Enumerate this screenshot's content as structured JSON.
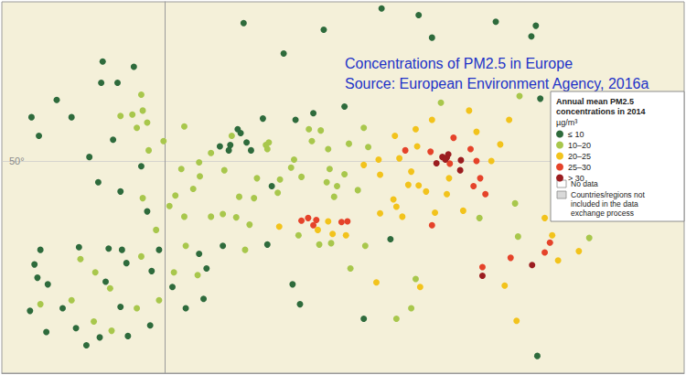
{
  "chart_data": {
    "type": "scatter",
    "title": "Concentrations of PM2.5 in Europe",
    "subtitle": "Source: European Environment Agency, 2016a",
    "legend_title": "Annual mean PM2.5 concentrations in 2014",
    "unit": "µg/m³",
    "legend": "right",
    "grid": true,
    "tick_labels": "y",
    "marker": "circle",
    "xlim": [
      -11,
      35
    ],
    "xticks": [],
    "ylim": [
      34,
      62
    ],
    "yticks": [
      {
        "value": 50,
        "label": "50°"
      }
    ],
    "areas": [
      {
        "label": "No data",
        "color": "#ffffff"
      },
      {
        "label": "Countries/regions not included in the data exchange process",
        "color": "#d9d9d9"
      }
    ],
    "series": [
      {
        "name": "≤ 10",
        "color": "#2e6b3c",
        "values": [
          [
            -8.6,
            41.2
          ],
          [
            -9.1,
            38.7
          ],
          [
            -8.0,
            37.1
          ],
          [
            -7.9,
            40.7
          ],
          [
            -8.4,
            43.3
          ],
          [
            -8.8,
            42.2
          ],
          [
            -5.8,
            43.5
          ],
          [
            -3.8,
            43.4
          ],
          [
            -2.9,
            43.3
          ],
          [
            -6.0,
            37.4
          ],
          [
            -4.4,
            36.7
          ],
          [
            -5.3,
            36.1
          ],
          [
            -2.5,
            36.8
          ],
          [
            -1.0,
            37.6
          ],
          [
            0.5,
            40.5
          ],
          [
            2.8,
            41.9
          ],
          [
            -6.9,
            38.9
          ],
          [
            -4.0,
            40.9
          ],
          [
            -2.6,
            42.3
          ],
          [
            -0.9,
            41.7
          ],
          [
            1.4,
            38.9
          ],
          [
            2.6,
            39.6
          ],
          [
            -3.0,
            39.0
          ],
          [
            -4.5,
            48.4
          ],
          [
            -1.6,
            49.6
          ],
          [
            -3.0,
            47.7
          ],
          [
            -1.2,
            46.2
          ],
          [
            2.3,
            43.0
          ],
          [
            6.9,
            43.7
          ],
          [
            3.9,
            43.6
          ],
          [
            -0.4,
            43.3
          ],
          [
            7.2,
            48.1
          ],
          [
            -6.3,
            53.3
          ],
          [
            -8.5,
            51.9
          ],
          [
            -9.0,
            53.3
          ],
          [
            -7.3,
            54.6
          ],
          [
            -4.3,
            55.9
          ],
          [
            -3.2,
            55.9
          ],
          [
            -2.1,
            57.1
          ],
          [
            -4.2,
            57.5
          ],
          [
            -5.1,
            50.3
          ],
          [
            -3.5,
            51.6
          ],
          [
            3.7,
            51.1
          ],
          [
            4.4,
            51.2
          ],
          [
            5.5,
            51.4
          ],
          [
            4.9,
            52.4
          ],
          [
            5.1,
            52.1
          ],
          [
            6.6,
            53.2
          ],
          [
            5.8,
            50.8
          ],
          [
            4.3,
            50.8
          ],
          [
            8.8,
            53.1
          ],
          [
            10.0,
            53.6
          ],
          [
            12.1,
            54.1
          ],
          [
            5.3,
            60.4
          ],
          [
            10.7,
            59.9
          ],
          [
            18.0,
            59.3
          ],
          [
            17.1,
            61.0
          ],
          [
            22.3,
            60.5
          ],
          [
            25.0,
            60.2
          ],
          [
            24.7,
            59.4
          ],
          [
            8.0,
            58.1
          ],
          [
            14.6,
            61.5
          ],
          [
            25.3,
            54.7
          ],
          [
            9.1,
            39.2
          ],
          [
            8.6,
            40.7
          ],
          [
            13.4,
            38.1
          ],
          [
            25.1,
            35.3
          ],
          [
            15.2,
            44.1
          ]
        ]
      },
      {
        "name": "10–20",
        "color": "#a8c74c",
        "values": [
          [
            -3.7,
            40.4
          ],
          [
            -4.7,
            41.6
          ],
          [
            -0.4,
            39.5
          ],
          [
            2.2,
            41.4
          ],
          [
            -1.6,
            42.8
          ],
          [
            -5.7,
            42.6
          ],
          [
            -3.6,
            37.2
          ],
          [
            -6.3,
            39.5
          ],
          [
            -1.9,
            38.9
          ],
          [
            0.6,
            41.6
          ],
          [
            -4.8,
            37.9
          ],
          [
            -8.4,
            39.2
          ],
          [
            2.35,
            48.85
          ],
          [
            4.8,
            45.75
          ],
          [
            5.4,
            43.3
          ],
          [
            1.4,
            43.6
          ],
          [
            -0.6,
            44.8
          ],
          [
            -1.5,
            47.2
          ],
          [
            3.1,
            50.6
          ],
          [
            6.2,
            48.7
          ],
          [
            7.75,
            48.6
          ],
          [
            5.0,
            47.3
          ],
          [
            3.1,
            45.8
          ],
          [
            1.9,
            47.9
          ],
          [
            0.7,
            47.4
          ],
          [
            1.1,
            49.4
          ],
          [
            2.3,
            49.9
          ],
          [
            4.0,
            49.3
          ],
          [
            6.0,
            47.2
          ],
          [
            0.3,
            46.6
          ],
          [
            5.7,
            45.2
          ],
          [
            1.3,
            45.8
          ],
          [
            3.9,
            46.0
          ],
          [
            -0.1,
            51.5
          ],
          [
            -1.9,
            52.5
          ],
          [
            -2.2,
            53.5
          ],
          [
            -1.5,
            53.8
          ],
          [
            -1.6,
            55.0
          ],
          [
            1.3,
            52.6
          ],
          [
            -1.1,
            50.8
          ],
          [
            -3.0,
            53.4
          ],
          [
            -1.2,
            52.9
          ],
          [
            4.5,
            51.9
          ],
          [
            6.8,
            51.2
          ],
          [
            7.0,
            51.4
          ],
          [
            6.9,
            50.9
          ],
          [
            8.7,
            50.1
          ],
          [
            9.2,
            48.8
          ],
          [
            11.6,
            48.1
          ],
          [
            13.4,
            52.5
          ],
          [
            12.4,
            51.3
          ],
          [
            13.7,
            51.05
          ],
          [
            9.7,
            52.4
          ],
          [
            8.5,
            49.5
          ],
          [
            11.1,
            49.4
          ],
          [
            10.5,
            52.3
          ],
          [
            7.6,
            47.6
          ],
          [
            10.9,
            48.4
          ],
          [
            11.0,
            50.9
          ],
          [
            9.9,
            51.5
          ],
          [
            12.1,
            49.0
          ],
          [
            13.0,
            47.8
          ],
          [
            11.4,
            47.3
          ],
          [
            18.6,
            54.4
          ],
          [
            23.9,
            54.9
          ],
          [
            23.6,
            46.8
          ],
          [
            21.2,
            45.7
          ],
          [
            23.8,
            44.3
          ],
          [
            28.6,
            44.2
          ],
          [
            12.5,
            41.9
          ],
          [
            16.9,
            41.1
          ],
          [
            15.6,
            38.1
          ],
          [
            11.2,
            43.8
          ],
          [
            10.4,
            43.7
          ],
          [
            13.5,
            43.6
          ],
          [
            9.0,
            44.4
          ],
          [
            16.6,
            38.9
          ]
        ]
      },
      {
        "name": "20–25",
        "color": "#f2c31c",
        "values": [
          [
            21.0,
            52.2
          ],
          [
            17.0,
            51.1
          ],
          [
            16.9,
            52.4
          ],
          [
            22.6,
            51.25
          ],
          [
            23.2,
            53.1
          ],
          [
            18.0,
            53.1
          ],
          [
            20.5,
            53.8
          ],
          [
            15.5,
            51.9
          ],
          [
            22.0,
            50.0
          ],
          [
            14.4,
            50.1
          ],
          [
            16.6,
            49.2
          ],
          [
            15.8,
            50.2
          ],
          [
            13.4,
            49.7
          ],
          [
            14.5,
            48.97
          ],
          [
            16.4,
            48.2
          ],
          [
            15.4,
            47.1
          ],
          [
            17.1,
            48.15
          ],
          [
            19.15,
            48.7
          ],
          [
            19.0,
            47.5
          ],
          [
            20.1,
            46.25
          ],
          [
            18.2,
            46.1
          ],
          [
            17.6,
            47.7
          ],
          [
            14.5,
            46.05
          ],
          [
            15.6,
            46.55
          ],
          [
            16.0,
            45.8
          ],
          [
            7.7,
            45.05
          ],
          [
            11.3,
            44.5
          ],
          [
            12.2,
            44.4
          ],
          [
            10.3,
            44.8
          ],
          [
            11.0,
            45.45
          ],
          [
            14.25,
            40.85
          ],
          [
            17.2,
            40.5
          ],
          [
            22.9,
            40.6
          ],
          [
            23.7,
            37.95
          ],
          [
            26.1,
            44.4
          ],
          [
            25.6,
            45.7
          ],
          [
            27.9,
            43.2
          ],
          [
            26.5,
            42.5
          ]
        ]
      },
      {
        "name": "25–30",
        "color": "#e5432a",
        "values": [
          [
            19.45,
            51.75
          ],
          [
            17.9,
            50.7
          ],
          [
            16.2,
            50.8
          ],
          [
            21.0,
            50.0
          ],
          [
            19.2,
            49.8
          ],
          [
            20.6,
            50.9
          ],
          [
            9.2,
            45.5
          ],
          [
            10.2,
            45.55
          ],
          [
            9.65,
            45.7
          ],
          [
            11.9,
            45.4
          ],
          [
            12.3,
            45.45
          ],
          [
            10.0,
            45.15
          ],
          [
            21.6,
            47.5
          ],
          [
            20.8,
            48.1
          ],
          [
            21.25,
            48.7
          ],
          [
            18.0,
            45.15
          ],
          [
            23.3,
            42.7
          ],
          [
            25.6,
            43.1
          ],
          [
            25.95,
            43.85
          ],
          [
            21.4,
            42.0
          ]
        ]
      },
      {
        "name": "> 30",
        "color": "#9b1d20",
        "values": [
          [
            19.0,
            50.26
          ],
          [
            19.95,
            50.06
          ],
          [
            18.7,
            50.3
          ],
          [
            18.3,
            49.83
          ],
          [
            18.9,
            50.1
          ],
          [
            19.1,
            50.5
          ],
          [
            19.9,
            49.3
          ],
          [
            24.75,
            42.15
          ],
          [
            21.4,
            41.35
          ]
        ]
      }
    ]
  }
}
